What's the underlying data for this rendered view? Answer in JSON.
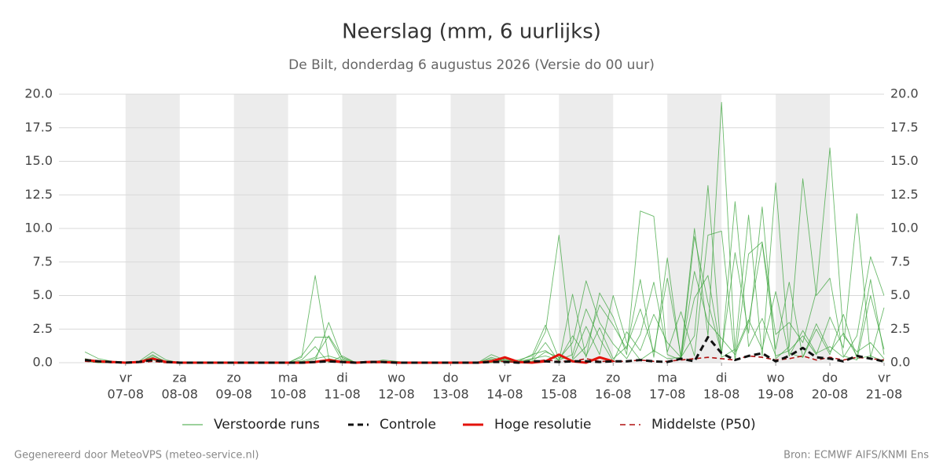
{
  "chart_data": {
    "type": "line",
    "title": "Neerslag (mm, 6 uurlijks)",
    "subtitle": "De Bilt, donderdag  6 augustus 2026 (Versie do 00 uur)",
    "source_left": "Gegenereerd door MeteoVPS (meteo-service.nl)",
    "source_right": "Bron: ECMWF AIFS/KNMI Ens",
    "xlim": [
      5.77,
      21
    ],
    "ylim": [
      0,
      20
    ],
    "yticks": [
      {
        "value": 0,
        "label": "0.0"
      },
      {
        "value": 2.5,
        "label": "2.5"
      },
      {
        "value": 5,
        "label": "5.0"
      },
      {
        "value": 7.5,
        "label": "7.5"
      },
      {
        "value": 10,
        "label": "10.0"
      },
      {
        "value": 12.5,
        "label": "12.5"
      },
      {
        "value": 15,
        "label": "15.0"
      },
      {
        "value": 17.5,
        "label": "17.5"
      },
      {
        "value": 20,
        "label": "20.0"
      }
    ],
    "xticks": [
      {
        "value": 7,
        "label": "07-08",
        "weekday": "vr"
      },
      {
        "value": 8,
        "label": "08-08",
        "weekday": "za"
      },
      {
        "value": 9,
        "label": "09-08",
        "weekday": "zo"
      },
      {
        "value": 10,
        "label": "10-08",
        "weekday": "ma"
      },
      {
        "value": 11,
        "label": "11-08",
        "weekday": "di"
      },
      {
        "value": 12,
        "label": "12-08",
        "weekday": "wo"
      },
      {
        "value": 13,
        "label": "13-08",
        "weekday": "do"
      },
      {
        "value": 14,
        "label": "14-08",
        "weekday": "vr"
      },
      {
        "value": 15,
        "label": "15-08",
        "weekday": "za"
      },
      {
        "value": 16,
        "label": "16-08",
        "weekday": "zo"
      },
      {
        "value": 17,
        "label": "17-08",
        "weekday": "ma"
      },
      {
        "value": 18,
        "label": "18-08",
        "weekday": "di"
      },
      {
        "value": 19,
        "label": "19-08",
        "weekday": "wo"
      },
      {
        "value": 20,
        "label": "20-08",
        "weekday": "do"
      },
      {
        "value": 21,
        "label": "21-08",
        "weekday": "vr"
      }
    ],
    "grid": true,
    "x": [
      6.25,
      6.5,
      6.75,
      7,
      7.25,
      7.5,
      7.75,
      8,
      8.25,
      8.5,
      8.75,
      9,
      9.25,
      9.5,
      9.75,
      10,
      10.25,
      10.5,
      10.75,
      11,
      11.25,
      11.5,
      11.75,
      12,
      12.25,
      12.5,
      12.75,
      13,
      13.25,
      13.5,
      13.75,
      14,
      14.25,
      14.5,
      14.75,
      15,
      15.25,
      15.5,
      15.75,
      16,
      16.25,
      16.5,
      16.75,
      17,
      17.25,
      17.5,
      17.75,
      18,
      18.25,
      18.5,
      18.75,
      19,
      19.25,
      19.5,
      19.75,
      20,
      20.25,
      20.5,
      20.75,
      21
    ],
    "ensemble": {
      "name": "Verstoorde runs",
      "color": "#3aa33a",
      "members": [
        [
          0.8,
          0.3,
          0.1,
          0,
          0.1,
          0.8,
          0.2,
          0,
          0,
          0,
          0,
          0,
          0,
          0,
          0,
          0,
          0.5,
          1.9,
          1.9,
          0.1,
          0,
          0,
          0.1,
          0,
          0,
          0,
          0,
          0,
          0,
          0,
          0.6,
          0.2,
          0,
          0.3,
          0.5,
          0.2,
          2.0,
          0.5,
          2.6,
          0.3,
          1.2,
          4.0,
          0.8,
          6.3,
          0.5,
          10.0,
          2.0,
          19.4,
          0.8,
          3.2,
          1.0,
          5.3,
          0.5,
          2.4,
          0.7,
          1.2,
          0.4,
          2.0,
          7.9,
          5.0
        ],
        [
          0.3,
          0.1,
          0,
          0,
          0,
          0.6,
          0,
          0,
          0,
          0,
          0,
          0,
          0,
          0,
          0,
          0,
          0.2,
          1.2,
          0,
          0.5,
          0,
          0,
          0.2,
          0.1,
          0,
          0,
          0,
          0,
          0,
          0,
          0.4,
          0.1,
          0.2,
          0.5,
          2.8,
          0.3,
          1.5,
          6.1,
          3.0,
          1.4,
          0.3,
          2.1,
          6.0,
          0.8,
          3.8,
          0.5,
          9.5,
          9.8,
          0.2,
          8.1,
          9.0,
          2.1,
          3.0,
          1.5,
          5.3,
          16.0,
          2.0,
          0.8,
          1.5,
          0.3
        ],
        [
          0.2,
          0.1,
          0,
          0,
          0,
          0.3,
          0,
          0,
          0,
          0,
          0,
          0,
          0,
          0,
          0,
          0,
          0,
          0.1,
          3.0,
          0.3,
          0,
          0.1,
          0,
          0,
          0,
          0,
          0,
          0,
          0,
          0,
          0.2,
          0.1,
          0.1,
          0.3,
          2.3,
          9.5,
          0.3,
          2.7,
          0.6,
          5.0,
          1.5,
          0.2,
          0.9,
          0.3,
          0.4,
          2.0,
          13.2,
          0.4,
          1.0,
          11.0,
          0.5,
          13.4,
          0.7,
          0.4,
          2.5,
          0.6,
          3.6,
          0.3,
          0.5,
          0.1
        ],
        [
          0.2,
          0,
          0,
          0,
          0,
          0.2,
          0,
          0,
          0,
          0,
          0,
          0,
          0,
          0,
          0,
          0,
          0,
          0.3,
          0.5,
          0.2,
          0,
          0,
          0,
          0,
          0,
          0,
          0,
          0,
          0,
          0,
          0,
          0.3,
          0,
          0.2,
          1.5,
          0.1,
          5.1,
          0.4,
          5.2,
          3.4,
          0.6,
          11.3,
          10.9,
          0.6,
          0.2,
          9.4,
          4.5,
          0.7,
          8.2,
          2.2,
          11.6,
          0.3,
          1.2,
          13.7,
          5.0,
          6.3,
          0.5,
          0.2,
          5.0,
          1.0
        ],
        [
          0.3,
          0.1,
          0,
          0,
          0,
          0.5,
          0.1,
          0,
          0,
          0,
          0,
          0,
          0,
          0,
          0,
          0,
          0.4,
          6.5,
          0.3,
          0.1,
          0,
          0,
          0,
          0,
          0,
          0,
          0,
          0,
          0,
          0,
          0,
          0.2,
          0,
          0.1,
          0.8,
          0.4,
          0.2,
          1.2,
          4.3,
          2.8,
          1.0,
          6.2,
          0.4,
          7.8,
          0.3,
          4.8,
          6.5,
          0.6,
          12.0,
          1.2,
          3.3,
          0.5,
          0.9,
          2.0,
          0.6,
          3.4,
          1.1,
          11.1,
          0.4,
          4.1
        ],
        [
          0.1,
          0,
          0,
          0,
          0,
          0.4,
          0,
          0,
          0,
          0,
          0,
          0,
          0,
          0,
          0,
          0,
          0.1,
          0.4,
          2.0,
          0.4,
          0,
          0,
          0.1,
          0,
          0,
          0,
          0,
          0,
          0,
          0,
          0.3,
          0,
          0.1,
          0.6,
          0.9,
          0.2,
          0.6,
          4.0,
          1.8,
          0.1,
          2.3,
          0.9,
          3.6,
          1.5,
          0.4,
          6.8,
          3.0,
          1.8,
          0.6,
          3.0,
          8.9,
          1.0,
          6.0,
          0.4,
          2.9,
          0.8,
          2.2,
          0.5,
          6.2,
          0.6
        ]
      ]
    },
    "series": [
      {
        "name": "Controle",
        "color": "#111111",
        "dash": true,
        "values": [
          0.2,
          0.1,
          0.05,
          0,
          0.05,
          0.2,
          0.05,
          0,
          0,
          0,
          0,
          0,
          0,
          0,
          0,
          0,
          0,
          0.05,
          0.1,
          0.05,
          0,
          0.05,
          0.05,
          0,
          0,
          0,
          0,
          0,
          0,
          0,
          0.05,
          0.05,
          0,
          0.1,
          0.1,
          0.05,
          0.1,
          0.1,
          0.05,
          0.1,
          0.1,
          0.2,
          0.1,
          0.05,
          0.3,
          0.1,
          1.9,
          0.7,
          0.2,
          0.5,
          0.7,
          0.1,
          0.5,
          1.1,
          0.4,
          0.3,
          0.1,
          0.5,
          0.3,
          0.1
        ]
      },
      {
        "name": "Hoge resolutie",
        "color": "#e3120b",
        "dash": false,
        "values": [
          0.2,
          0.1,
          0.05,
          0,
          0.05,
          0.3,
          0.05,
          0,
          0,
          0,
          0,
          0,
          0,
          0,
          0,
          0,
          0,
          0.05,
          0.2,
          0.05,
          0,
          0.05,
          0.05,
          0,
          0,
          0,
          0,
          0,
          0,
          0,
          0.1,
          0.4,
          0.05,
          0,
          0.1,
          0.6,
          0.1,
          0,
          0.4,
          0.1,
          null,
          null,
          null,
          null,
          null,
          null,
          null,
          null,
          null,
          null,
          null,
          null,
          null,
          null,
          null,
          null,
          null,
          null,
          null,
          null
        ]
      },
      {
        "name": "Middelste (P50)",
        "color": "#b01010",
        "dash": true,
        "values": [
          0.1,
          0.05,
          0,
          0,
          0,
          0.1,
          0,
          0,
          0,
          0,
          0,
          0,
          0,
          0,
          0,
          0,
          0,
          0.05,
          0.1,
          0,
          0,
          0,
          0,
          0,
          0,
          0,
          0,
          0,
          0,
          0,
          0.1,
          0.1,
          0,
          0.05,
          0.2,
          0.1,
          0.1,
          0.3,
          0.1,
          0.1,
          0.1,
          0.2,
          0.1,
          0.1,
          0.2,
          0.3,
          0.4,
          0.3,
          0.2,
          0.5,
          0.4,
          0.2,
          0.3,
          0.5,
          0.2,
          0.4,
          0.2,
          0.4,
          0.3,
          0.2
        ]
      }
    ]
  }
}
